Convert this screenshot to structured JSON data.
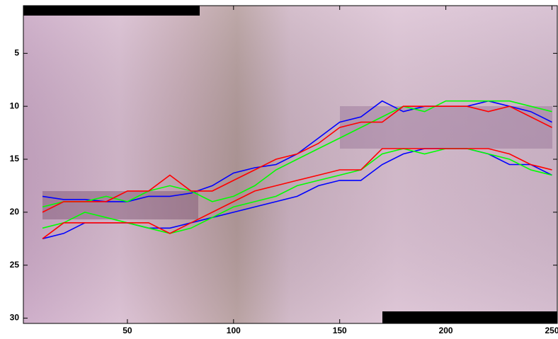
{
  "chart_data": {
    "type": "line",
    "x": [
      10,
      20,
      30,
      40,
      50,
      60,
      70,
      80,
      90,
      100,
      110,
      120,
      130,
      140,
      150,
      160,
      170,
      180,
      190,
      200,
      210,
      220,
      230,
      240,
      250
    ],
    "series": [
      {
        "color": "#0000ff",
        "values": [
          18.5,
          18.8,
          18.8,
          19,
          19,
          18.5,
          18.5,
          18.2,
          17.5,
          16.3,
          15.8,
          15.5,
          14.5,
          13,
          11.5,
          11,
          9.5,
          10.5,
          10,
          10,
          10,
          9.5,
          10,
          10.5,
          11.5
        ]
      },
      {
        "color": "#0000ff",
        "values": [
          22.5,
          22,
          21,
          21,
          21,
          21.5,
          21.5,
          21,
          20.5,
          20,
          19.5,
          19,
          18.5,
          17.5,
          17,
          17,
          15.5,
          14.5,
          14,
          14,
          14,
          14.5,
          15.5,
          15.5,
          16.5
        ]
      },
      {
        "color": "#00ff00",
        "values": [
          19.5,
          19,
          19,
          18.5,
          19,
          18,
          17.5,
          18,
          19,
          18.5,
          17.5,
          16,
          15,
          14,
          13,
          12,
          11,
          10,
          10.5,
          9.5,
          9.5,
          9.5,
          9.5,
          10,
          10.5
        ]
      },
      {
        "color": "#00ff00",
        "values": [
          21.5,
          21,
          20,
          20.5,
          21,
          21.5,
          22,
          21.5,
          20.5,
          19.5,
          19,
          18.5,
          17.5,
          17,
          16.5,
          16,
          14.5,
          14,
          14.5,
          14,
          14,
          14.5,
          15,
          16,
          16.5
        ]
      },
      {
        "color": "#ff0000",
        "values": [
          20,
          19,
          19,
          19,
          18,
          18,
          16.5,
          18,
          18,
          17,
          16,
          15,
          14.5,
          13.5,
          12,
          11.5,
          11.5,
          10,
          10,
          10,
          10,
          10.5,
          10,
          11,
          12
        ]
      },
      {
        "color": "#ff0000",
        "values": [
          22.5,
          21,
          21,
          21,
          21,
          21,
          22,
          21,
          20,
          19,
          18,
          17.5,
          17,
          16.5,
          16,
          16,
          14,
          14,
          14,
          14,
          14,
          14,
          14.5,
          15.5,
          16
        ]
      }
    ],
    "xlim": [
      1,
      252.5
    ],
    "xticks": [
      50,
      100,
      150,
      200,
      250
    ],
    "ylim": [
      30.5,
      0.5
    ],
    "yticks": [
      5,
      10,
      15,
      20,
      25,
      30
    ],
    "y_reversed": true
  }
}
